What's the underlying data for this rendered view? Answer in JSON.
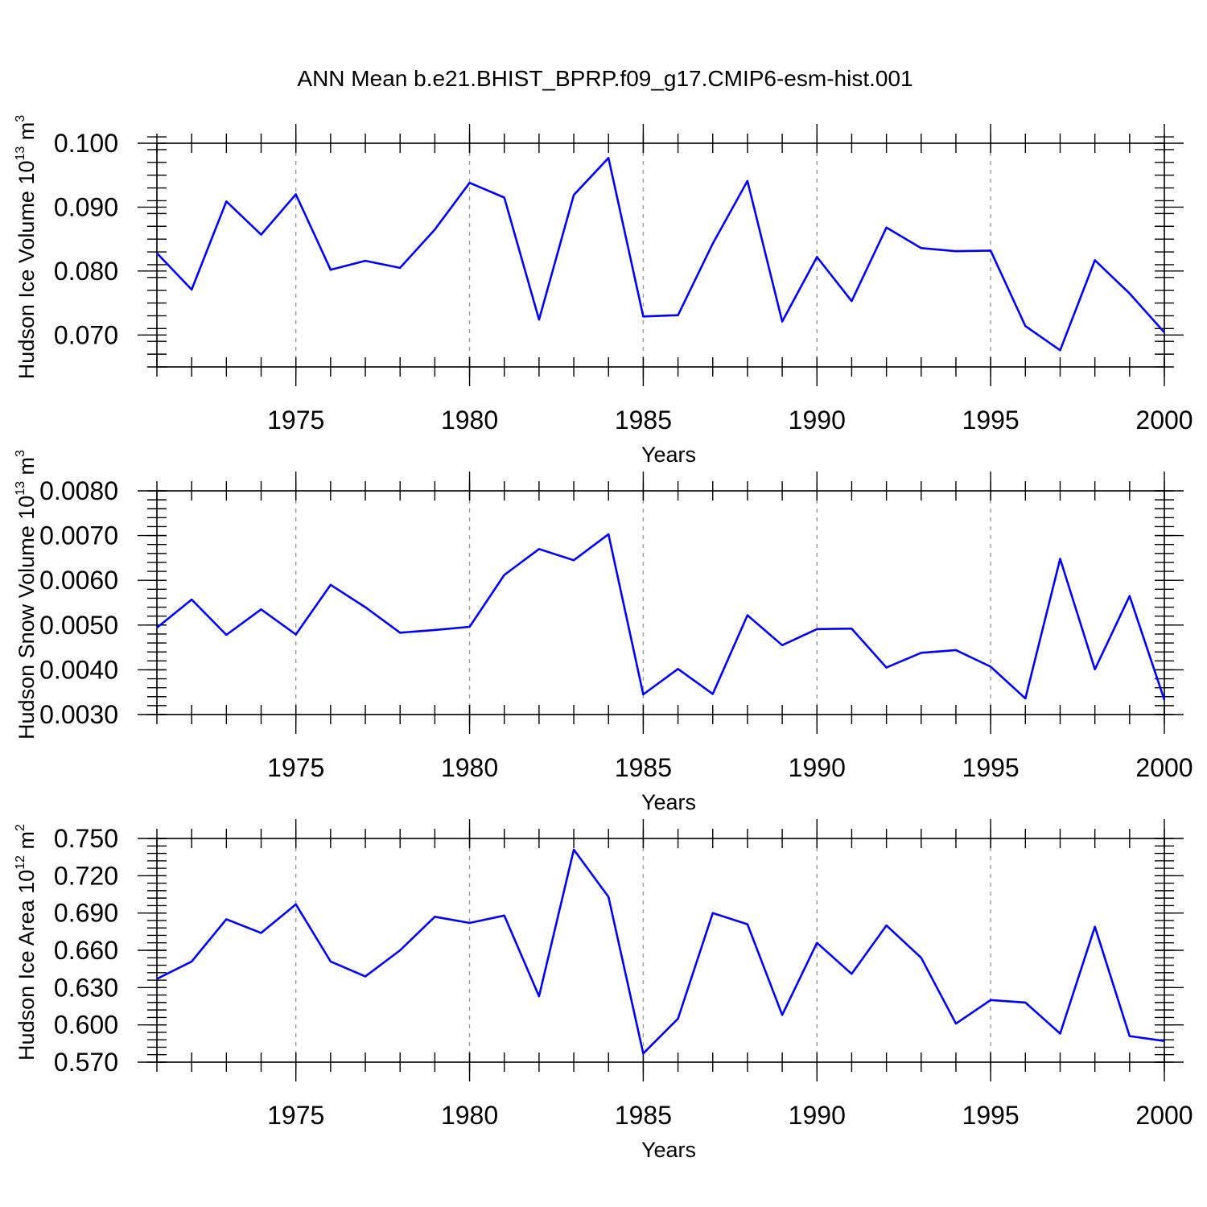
{
  "title": "ANN Mean b.e21.BHIST_BPRP.f09_g17.CMIP6-esm-hist.001",
  "colors": {
    "series": "#0000ff",
    "grid": "#999999",
    "axes": "#000000"
  },
  "chart_data": [
    {
      "type": "line",
      "ylabel": {
        "main": "Hudson Ice Volume 10",
        "exp": "13",
        "mid": " m",
        "unit_exp": "3"
      },
      "xlabel": "Years",
      "xlim": [
        1971,
        2000
      ],
      "ylim": [
        0.065,
        0.1
      ],
      "yticks": [
        0.07,
        0.08,
        0.09,
        0.1
      ],
      "ytick_labels": [
        "0.070",
        "0.080",
        "0.090",
        "0.100"
      ],
      "xticks": [
        1975,
        1980,
        1985,
        1990,
        1995,
        2000
      ],
      "grid": "vertical dashed at major x ticks",
      "x": [
        1971,
        1972,
        1973,
        1974,
        1975,
        1976,
        1977,
        1978,
        1979,
        1980,
        1981,
        1982,
        1983,
        1984,
        1985,
        1986,
        1987,
        1988,
        1989,
        1990,
        1991,
        1992,
        1993,
        1994,
        1995,
        1996,
        1997,
        1998,
        1999,
        2000
      ],
      "values": [
        0.0828,
        0.0771,
        0.0909,
        0.0857,
        0.092,
        0.0802,
        0.0816,
        0.0805,
        0.0865,
        0.0938,
        0.0915,
        0.0724,
        0.0919,
        0.0977,
        0.0729,
        0.0731,
        0.0843,
        0.0941,
        0.0721,
        0.0822,
        0.0753,
        0.0868,
        0.0836,
        0.0831,
        0.0832,
        0.0714,
        0.0676,
        0.0817,
        0.0765,
        0.0704
      ]
    },
    {
      "type": "line",
      "ylabel": {
        "main": "Hudson Snow Volume 10",
        "exp": "13",
        "mid": " m",
        "unit_exp": "3"
      },
      "xlabel": "Years",
      "xlim": [
        1971,
        2000
      ],
      "ylim": [
        0.003,
        0.008
      ],
      "yticks": [
        0.003,
        0.004,
        0.005,
        0.006,
        0.007,
        0.008
      ],
      "ytick_labels": [
        "0.0030",
        "0.0040",
        "0.0050",
        "0.0060",
        "0.0070",
        "0.0080"
      ],
      "xticks": [
        1975,
        1980,
        1985,
        1990,
        1995,
        2000
      ],
      "grid": "vertical dashed at major x ticks",
      "x": [
        1971,
        1972,
        1973,
        1974,
        1975,
        1976,
        1977,
        1978,
        1979,
        1980,
        1981,
        1982,
        1983,
        1984,
        1985,
        1986,
        1987,
        1988,
        1989,
        1990,
        1991,
        1992,
        1993,
        1994,
        1995,
        1996,
        1997,
        1998,
        1999,
        2000
      ],
      "values": [
        0.00494,
        0.00557,
        0.00478,
        0.00535,
        0.00479,
        0.0059,
        0.0054,
        0.00483,
        0.00489,
        0.00496,
        0.00612,
        0.0067,
        0.00645,
        0.00703,
        0.00345,
        0.00402,
        0.00346,
        0.00522,
        0.00455,
        0.00491,
        0.00492,
        0.00405,
        0.00438,
        0.00444,
        0.00407,
        0.00336,
        0.00648,
        0.00401,
        0.00565,
        0.00333
      ]
    },
    {
      "type": "line",
      "ylabel": {
        "main": "Hudson Ice Area 10",
        "exp": "12",
        "mid": " m",
        "unit_exp": "2"
      },
      "xlabel": "Years",
      "xlim": [
        1971,
        2000
      ],
      "ylim": [
        0.57,
        0.75
      ],
      "yticks": [
        0.57,
        0.6,
        0.63,
        0.66,
        0.69,
        0.72,
        0.75
      ],
      "ytick_labels": [
        "0.570",
        "0.600",
        "0.630",
        "0.660",
        "0.690",
        "0.720",
        "0.750"
      ],
      "xticks": [
        1975,
        1980,
        1985,
        1990,
        1995,
        2000
      ],
      "grid": "vertical dashed at major x ticks",
      "x": [
        1971,
        1972,
        1973,
        1974,
        1975,
        1976,
        1977,
        1978,
        1979,
        1980,
        1981,
        1982,
        1983,
        1984,
        1985,
        1986,
        1987,
        1988,
        1989,
        1990,
        1991,
        1992,
        1993,
        1994,
        1995,
        1996,
        1997,
        1998,
        1999,
        2000
      ],
      "values": [
        0.637,
        0.651,
        0.685,
        0.674,
        0.697,
        0.651,
        0.639,
        0.66,
        0.687,
        0.682,
        0.688,
        0.623,
        0.741,
        0.703,
        0.577,
        0.605,
        0.69,
        0.681,
        0.608,
        0.666,
        0.641,
        0.68,
        0.654,
        0.601,
        0.62,
        0.618,
        0.593,
        0.679,
        0.591,
        0.587
      ]
    }
  ]
}
